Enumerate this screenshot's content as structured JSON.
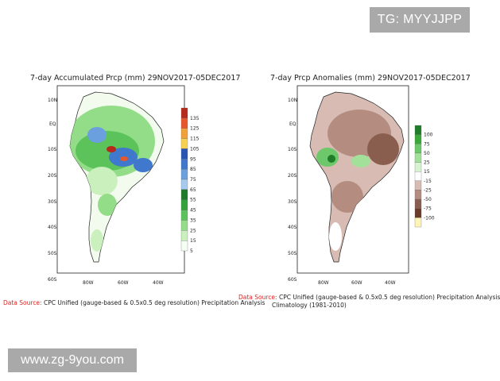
{
  "watermarks": {
    "top": "TG: MYYJJPP",
    "bottom": "www.zg-9you.com"
  },
  "left_map": {
    "title": "7-day Accumulated Prcp (mm) 29NOV2017-05DEC2017",
    "lat_ticks": [
      "10N",
      "EQ",
      "10S",
      "20S",
      "30S",
      "40S",
      "50S",
      "60S"
    ],
    "lon_ticks": [
      "80W",
      "60W",
      "40W"
    ],
    "colorbar": {
      "labels": [
        "135",
        "125",
        "115",
        "105",
        "95",
        "85",
        "75",
        "65",
        "55",
        "45",
        "35",
        "25",
        "15",
        "5"
      ],
      "colors": [
        "#b52a1a",
        "#e8562b",
        "#f2a038",
        "#f7d250",
        "#2a55b5",
        "#3f78cc",
        "#6aa0dd",
        "#a7cbee",
        "#1d7a2a",
        "#33a33a",
        "#5cc35a",
        "#94dd88",
        "#c9f0bd",
        "#f6fff4"
      ]
    }
  },
  "right_map": {
    "title": "7-day Prcp Anomalies (mm) 29NOV2017-05DEC2017",
    "lat_ticks": [
      "10N",
      "EQ",
      "10S",
      "20S",
      "30S",
      "40S",
      "50S",
      "60S"
    ],
    "lon_ticks": [
      "80W",
      "60W",
      "40W"
    ],
    "colorbar": {
      "labels": [
        "100",
        "75",
        "50",
        "25",
        "15",
        "-15",
        "-25",
        "-50",
        "-75",
        "-100"
      ],
      "colors": [
        "#1f7d2a",
        "#3aa83a",
        "#6cc86a",
        "#a3e19a",
        "#d8f3cf",
        "#ffffff",
        "#d8bcb4",
        "#b48c80",
        "#8a5e4e",
        "#6a3c2a",
        "#fff4b8"
      ]
    }
  },
  "source_left": {
    "label": "Data Source:",
    "text": "CPC Unified (gauge-based & 0.5x0.5 deg resolution) Precipitation Analysis"
  },
  "source_right": {
    "label": "Data Source:",
    "text": "CPC Unified (gauge-based & 0.5x0.5 deg resolution) Precipitation Analysis",
    "line2": "Climatology (1981-2010)"
  }
}
